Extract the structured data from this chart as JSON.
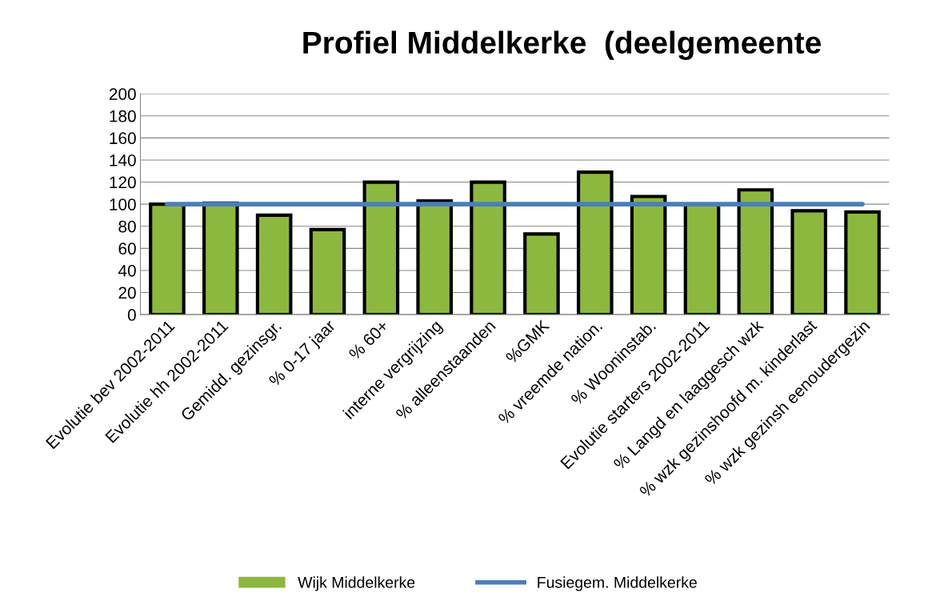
{
  "chart_data": {
    "type": "bar",
    "title": "Profiel Middelkerke  (deelgemeente",
    "categories": [
      "Evolutie bev 2002-2011",
      "Evolutie hh 2002-2011",
      "Gemidd. gezinsgr.",
      "% 0-17 jaar",
      "% 60+",
      "interne vergrijzing",
      "% alleenstaanden",
      "%GMK",
      "% vreemde nation.",
      "% Wooninstab.",
      "Evolutie starters 2002-2011",
      "% Langd en laaggesch wzk",
      "% wzk gezinshoofd m. kinderlast",
      "% wzk gezinsh eenoudergezin"
    ],
    "series": [
      {
        "name": "Wijk Middelkerke",
        "color": "#8db83f",
        "values": [
          100,
          101,
          90,
          77,
          120,
          103,
          120,
          73,
          129,
          107,
          100,
          113,
          94,
          93
        ]
      },
      {
        "name": "Fusiegem. Middelkerke",
        "type": "line",
        "color": "#4a7ebb",
        "values": [
          100,
          100,
          100,
          100,
          100,
          100,
          100,
          100,
          100,
          100,
          100,
          100,
          100,
          100
        ]
      }
    ],
    "ylim": [
      0,
      200
    ],
    "yticks": [
      0,
      20,
      40,
      60,
      80,
      100,
      120,
      140,
      160,
      180,
      200
    ],
    "grid": "y",
    "legend": "bottom",
    "marker": "none"
  }
}
